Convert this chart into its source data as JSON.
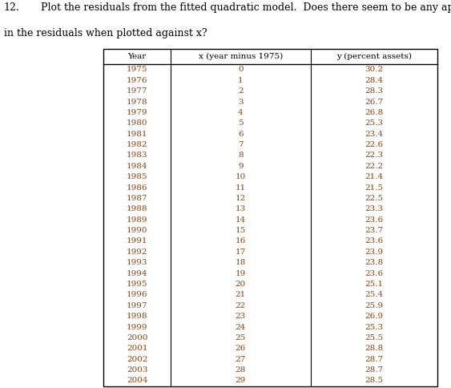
{
  "title_number": "12.",
  "title_text": "Plot the residuals from the fitted quadratic model.  Does there seem to be any apparent pattern\nin the residuals when plotted against x?",
  "col_headers": [
    "Year",
    "x (year minus 1975)",
    "y (percent assets)"
  ],
  "rows": [
    [
      1975,
      0,
      30.2
    ],
    [
      1976,
      1,
      28.4
    ],
    [
      1977,
      2,
      28.3
    ],
    [
      1978,
      3,
      26.7
    ],
    [
      1979,
      4,
      26.8
    ],
    [
      1980,
      5,
      25.3
    ],
    [
      1981,
      6,
      23.4
    ],
    [
      1982,
      7,
      22.6
    ],
    [
      1983,
      8,
      22.3
    ],
    [
      1984,
      9,
      22.2
    ],
    [
      1985,
      10,
      21.4
    ],
    [
      1986,
      11,
      21.5
    ],
    [
      1987,
      12,
      22.5
    ],
    [
      1988,
      13,
      23.3
    ],
    [
      1989,
      14,
      23.6
    ],
    [
      1990,
      15,
      23.7
    ],
    [
      1991,
      16,
      23.6
    ],
    [
      1992,
      17,
      23.9
    ],
    [
      1993,
      18,
      23.8
    ],
    [
      1994,
      19,
      23.6
    ],
    [
      1995,
      20,
      25.1
    ],
    [
      1996,
      21,
      25.4
    ],
    [
      1997,
      22,
      25.9
    ],
    [
      1998,
      23,
      26.9
    ],
    [
      1999,
      24,
      25.3
    ],
    [
      2000,
      25,
      25.5
    ],
    [
      2001,
      26,
      28.8
    ],
    [
      2002,
      27,
      28.7
    ],
    [
      2003,
      28,
      28.7
    ],
    [
      2004,
      29,
      28.5
    ]
  ],
  "text_color": "#8B4513",
  "header_color": "#000000",
  "table_edge_color": "#000000",
  "bg_color": "#ffffff",
  "font_size": 7.5,
  "title_font_size": 9.0,
  "number_font_size": 9.0,
  "fig_width": 5.63,
  "fig_height": 4.84
}
